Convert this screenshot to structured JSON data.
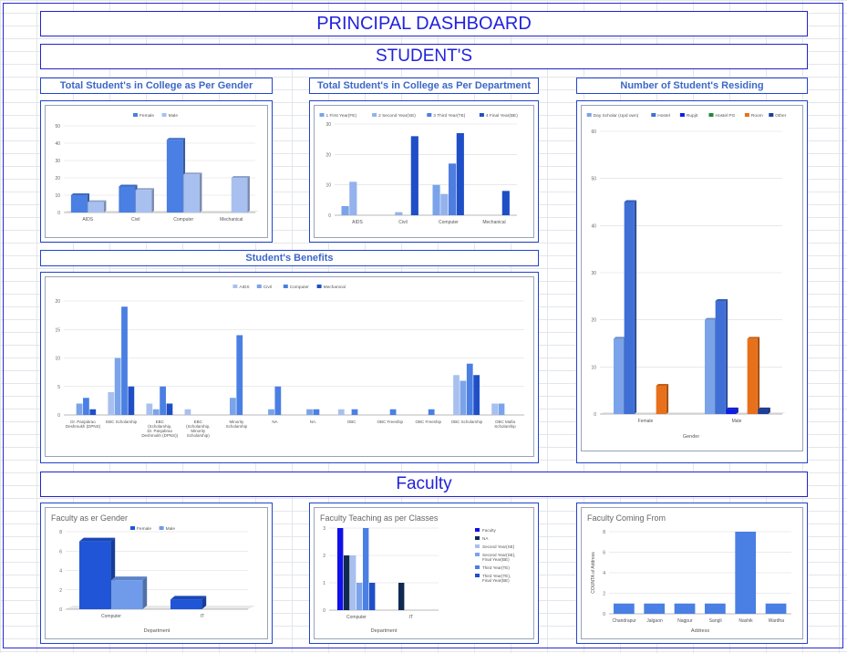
{
  "header": {
    "title": "PRINCIPAL DASHBOARD",
    "students_banner": "STUDENT'S",
    "faculty_banner": "Faculty"
  },
  "sections": {
    "gender": "Total Student's in College as Per Gender",
    "department": "Total Student's in College as Per Department",
    "residing": "Number of Student's Residing",
    "benefits": "Student's Benefits"
  },
  "colors": {
    "banner_border": "#2222cc",
    "banner_text": "#2222dd",
    "section_text": "#3c67c9"
  },
  "chart_data": [
    {
      "id": "gender",
      "type": "bar",
      "title": "",
      "categories": [
        "AIDS",
        "Civil",
        "Computer",
        "Mechanical"
      ],
      "series": [
        {
          "name": "Female",
          "color": "#4a7fe3",
          "values": [
            10,
            15,
            42,
            0
          ]
        },
        {
          "name": "Male",
          "color": "#a8c0ef",
          "values": [
            6,
            13,
            22,
            20
          ]
        }
      ],
      "ylim": [
        0,
        50
      ],
      "yticks": [
        0,
        10,
        20,
        30,
        40,
        50
      ],
      "xlabel": "",
      "ylabel": ""
    },
    {
      "id": "department",
      "type": "bar",
      "title": "",
      "categories": [
        "AIDS",
        "Civil",
        "Computer",
        "Mechanical"
      ],
      "series": [
        {
          "name": "1 First Year(FE)",
          "color": "#7aa3ea",
          "values": [
            3,
            0,
            10,
            0
          ]
        },
        {
          "name": "2 Second Year(SE)",
          "color": "#94b2ec",
          "values": [
            11,
            1,
            7,
            0
          ]
        },
        {
          "name": "3 Third Year(TE)",
          "color": "#4f7ee0",
          "values": [
            0,
            0,
            17,
            0
          ]
        },
        {
          "name": "4 Final Year(BE)",
          "color": "#1f4fc7",
          "values": [
            0,
            26,
            27,
            8
          ]
        }
      ],
      "ylim": [
        0,
        30
      ],
      "yticks": [
        0,
        10,
        20,
        30
      ],
      "xlabel": "",
      "ylabel": ""
    },
    {
      "id": "residing",
      "type": "bar",
      "title": "",
      "categories": [
        "Female",
        "Male"
      ],
      "series": [
        {
          "name": "Day Scholar (Upd own)",
          "color": "#7aa3ea",
          "values": [
            16,
            20
          ]
        },
        {
          "name": "Hostel",
          "color": "#3f6fd6",
          "values": [
            45,
            24
          ]
        },
        {
          "name": "Rupjit",
          "color": "#0d1ee6",
          "values": [
            0,
            1
          ]
        },
        {
          "name": "Hostel PG",
          "color": "#1e8a3a",
          "values": [
            0,
            0
          ]
        },
        {
          "name": "Room",
          "color": "#e8701a",
          "values": [
            6,
            16
          ]
        },
        {
          "name": "Other",
          "color": "#1d3e9a",
          "values": [
            0,
            1
          ]
        }
      ],
      "ylim": [
        0,
        60
      ],
      "yticks": [
        0,
        10,
        20,
        30,
        40,
        50,
        60
      ],
      "xlabel": "Gender",
      "ylabel": ""
    },
    {
      "id": "benefits",
      "type": "bar",
      "title": "",
      "categories": [
        "Dr. Panjabrao Deshmukh (DPNS)",
        "EBC Scholarship",
        "EBC (Scholarship, Dr. Panjabrao Deshmukh (DPNS))",
        "EBC (Scholarship, Minority Scholarship)",
        "Minority Scholarship",
        "NA",
        "NA.",
        "OBC",
        "OBC Freeship",
        "OBC Freeship",
        "OBC Scholarship",
        "OBC Mafia Scholarship"
      ],
      "series": [
        {
          "name": "AIDS",
          "color": "#a8c0ef",
          "values": [
            0,
            4,
            2,
            1,
            0,
            0,
            0,
            1,
            0,
            0,
            7,
            2
          ]
        },
        {
          "name": "Civil",
          "color": "#7aa3ea",
          "values": [
            2,
            10,
            1,
            0,
            3,
            1,
            1,
            0,
            0,
            0,
            6,
            2
          ]
        },
        {
          "name": "Computer",
          "color": "#4a7fe3",
          "values": [
            3,
            19,
            5,
            0,
            14,
            5,
            1,
            1,
            1,
            1,
            9,
            0
          ]
        },
        {
          "name": "Mechanical",
          "color": "#1f4fc7",
          "values": [
            1,
            5,
            2,
            0,
            0,
            0,
            0,
            0,
            0,
            0,
            7,
            0
          ]
        }
      ],
      "ylim": [
        0,
        20
      ],
      "yticks": [
        0,
        5,
        10,
        15,
        20
      ],
      "xlabel": "",
      "ylabel": ""
    },
    {
      "id": "faculty-gender",
      "type": "bar",
      "title": "Faculty as er Gender",
      "categories": [
        "Computer",
        "IT"
      ],
      "series": [
        {
          "name": "Female",
          "color": "#1f55d6",
          "values": [
            7,
            1
          ]
        },
        {
          "name": "Male",
          "color": "#6f9bea",
          "values": [
            3,
            0
          ]
        }
      ],
      "ylim": [
        0,
        8
      ],
      "yticks": [
        0,
        2,
        4,
        6,
        8
      ],
      "xlabel": "Department",
      "ylabel": ""
    },
    {
      "id": "faculty-classes",
      "type": "bar",
      "title": "Faculty Teaching as per Classes",
      "categories": [
        "Computer",
        "IT"
      ],
      "series": [
        {
          "name": "Faculty",
          "color": "#1010e8",
          "values": [
            3,
            0
          ]
        },
        {
          "name": "NA",
          "color": "#0e2a52",
          "values": [
            2,
            1
          ]
        },
        {
          "name": "Second Year(SE)",
          "color": "#a8c0ef",
          "values": [
            2,
            0
          ]
        },
        {
          "name": "Second Year(SE), Final Year(BE)",
          "color": "#7aa3ea",
          "values": [
            1,
            0
          ]
        },
        {
          "name": "Third Year(TE)",
          "color": "#4a7fe3",
          "values": [
            3,
            0
          ]
        },
        {
          "name": "Third Year(TE), Final Year(BE)",
          "color": "#1f4fc7",
          "values": [
            1,
            0
          ]
        }
      ],
      "ylim": [
        0,
        3
      ],
      "yticks": [
        0,
        1,
        2,
        3
      ],
      "xlabel": "Department",
      "ylabel": ""
    },
    {
      "id": "faculty-from",
      "type": "bar",
      "title": "Faculty Coming From",
      "categories": [
        "Chandrapur",
        "Jalgaon",
        "Nagpur",
        "Sangli",
        "Nashik",
        "Wardha"
      ],
      "series": [
        {
          "name": "",
          "color": "#4a7fe3",
          "values": [
            1,
            1,
            1,
            1,
            8,
            1
          ]
        }
      ],
      "ylim": [
        0,
        8
      ],
      "yticks": [
        0,
        2,
        4,
        6,
        8
      ],
      "xlabel": "Address",
      "ylabel": "COUNTA of Address"
    }
  ]
}
